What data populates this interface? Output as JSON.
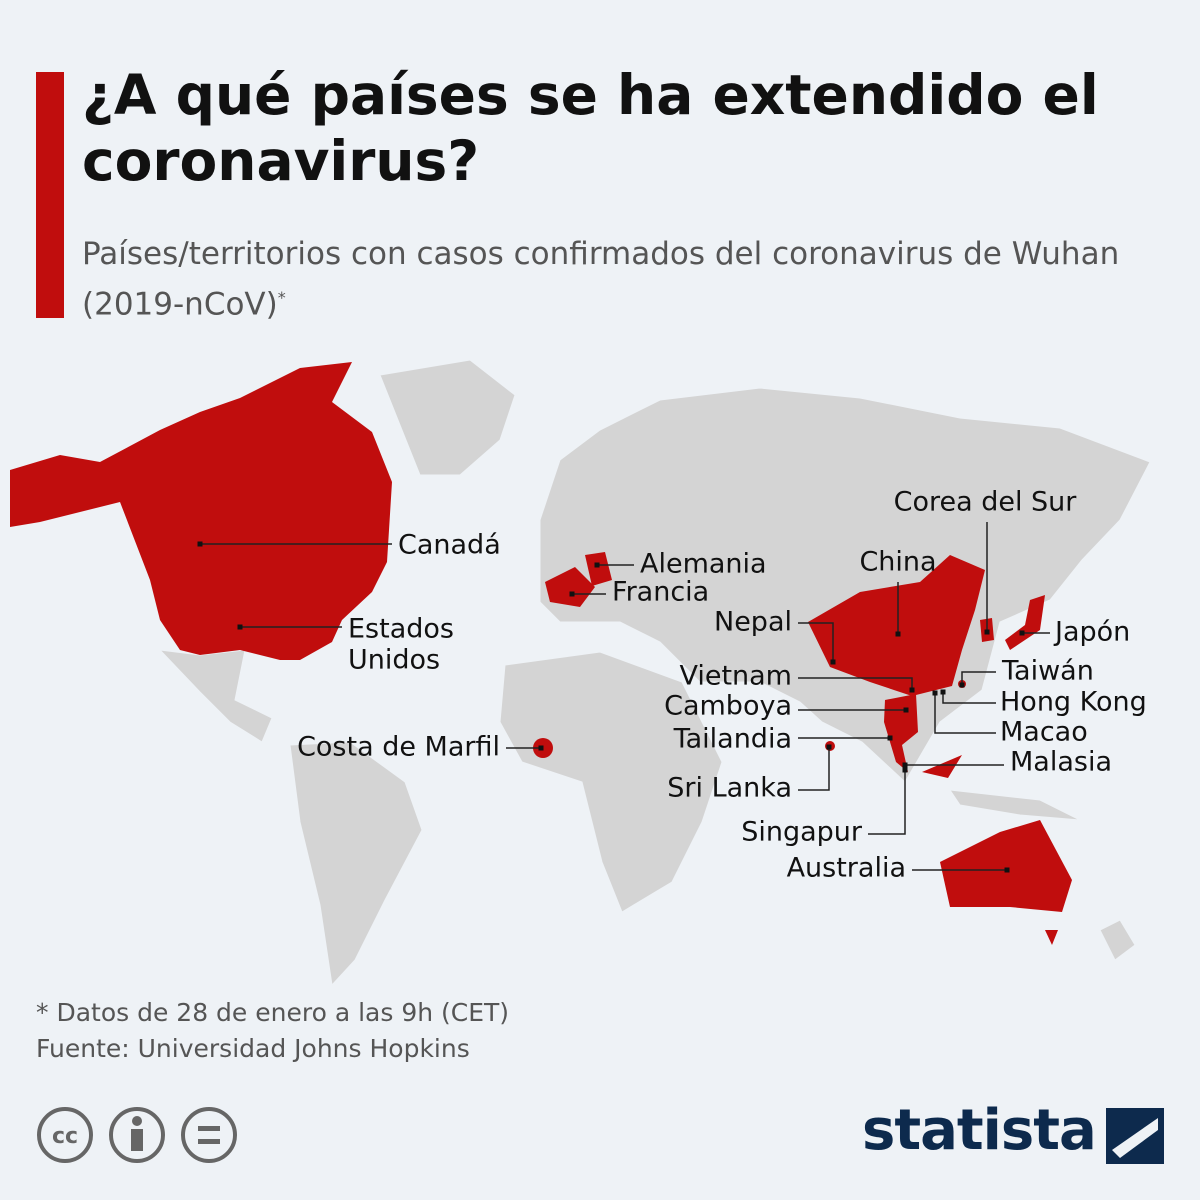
{
  "header": {
    "title": "¿A qué países se ha extendido el coronavirus?",
    "subtitle": "Países/territorios con casos confirmados del coronavirus de Wuhan (2019-nCoV)",
    "subtitle_mark": "*"
  },
  "map": {
    "labels": [
      "Canadá",
      "Alemania",
      "Francia",
      "Estados",
      "Unidos",
      "Costa de Marfil",
      "Corea del Sur",
      "China",
      "Nepal",
      "Japón",
      "Taiwán",
      "Vietnam",
      "Hong Kong",
      "Camboya",
      "Macao",
      "Tailandia",
      "Malasia",
      "Sri Lanka",
      "Singapur",
      "Australia"
    ]
  },
  "footer": {
    "note": "* Datos de 28 de enero a las 9h (CET)",
    "source": "Fuente: Universidad Johns Hopkins",
    "brand": "statista"
  }
}
